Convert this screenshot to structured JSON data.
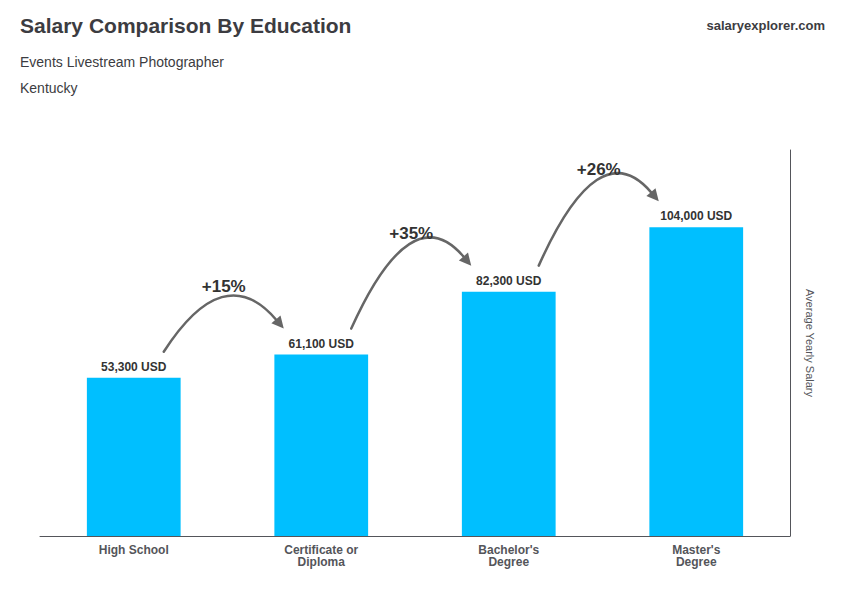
{
  "chart_data": {
    "type": "bar",
    "title": "Salary Comparison By Education",
    "subtitle": "Events Livestream Photographer",
    "location": "Kentucky",
    "brand": "salaryexplorer.com",
    "ylabel": "Average Yearly Salary",
    "categories": [
      "High School",
      "Certificate or\nDiploma",
      "Bachelor's\nDegree",
      "Master's\nDegree"
    ],
    "values": [
      53300,
      61100,
      82300,
      104000
    ],
    "value_labels": [
      "53,300 USD",
      "61,100 USD",
      "82,300 USD",
      "104,000 USD"
    ],
    "data_labels": true,
    "annotations": [
      "+15%",
      "+35%",
      "+26%"
    ],
    "color": "#00BFFF",
    "ylim": [
      0,
      130000
    ],
    "grid": false,
    "tick_labels": "x"
  }
}
